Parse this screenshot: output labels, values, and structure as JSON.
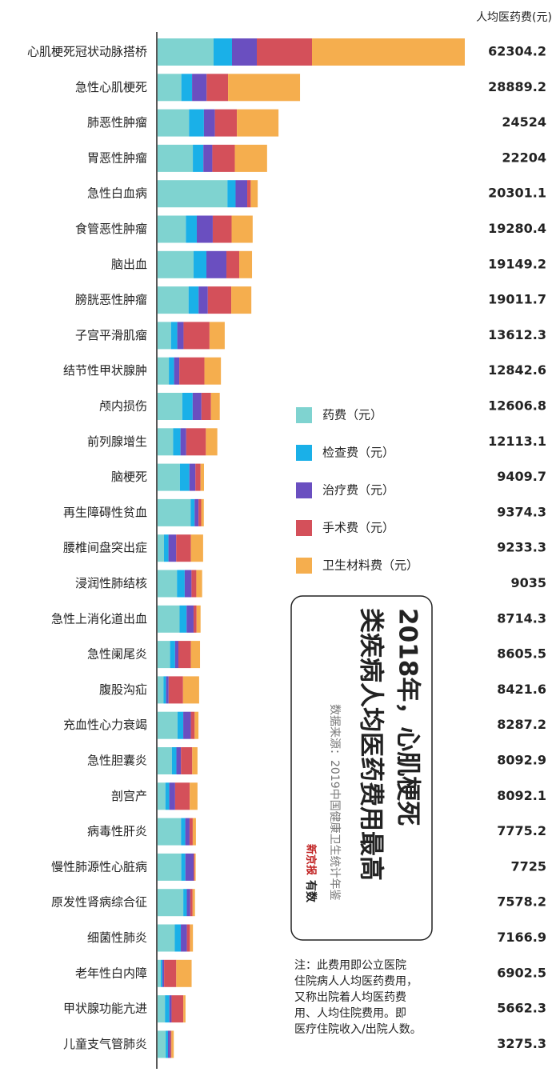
{
  "chart_data": {
    "type": "stacked-bar-horizontal",
    "value_header": "人均医药费(元)",
    "categories": [
      "心肌梗死冠状动脉搭桥",
      "急性心肌梗死",
      "肺恶性肿瘤",
      "胃恶性肿瘤",
      "急性白血病",
      "食管恶性肿瘤",
      "脑出血",
      "膀胱恶性肿瘤",
      "子宫平滑肌瘤",
      "结节性甲状腺肿",
      "颅内损伤",
      "前列腺增生",
      "脑梗死",
      "再生障碍性贫血",
      "腰椎间盘突出症",
      "浸润性肺结核",
      "急性上消化道出血",
      "急性阑尾炎",
      "腹股沟疝",
      "充血性心力衰竭",
      "急性胆囊炎",
      "剖宫产",
      "病毒性肝炎",
      "慢性肺源性心脏病",
      "原发性肾病综合征",
      "细菌性肺炎",
      "老年性白内障",
      "甲状腺功能亢进",
      "儿童支气管肺炎"
    ],
    "totals": [
      62304.2,
      28889.2,
      24524,
      22204,
      20301.1,
      19280.4,
      19149.2,
      19011.7,
      13612.3,
      12842.6,
      12606.8,
      12113.1,
      9409.7,
      9374.3,
      9233.3,
      9035,
      8714.3,
      8605.5,
      8421.6,
      8287.2,
      8092.9,
      8092.1,
      7775.2,
      7725,
      7578.2,
      7166.9,
      6902.5,
      5662.3,
      3275.3
    ],
    "series": [
      {
        "name": "药费（元）",
        "color": "#7fd3d0",
        "values": [
          11357,
          4815,
          6370,
          7148,
          14164,
          5740,
          7303,
          6281,
          2722,
          2287,
          5010,
          3153,
          4530,
          6696,
          1300,
          3928,
          4458,
          2531,
          1203,
          4047,
          2901,
          1579,
          4751,
          4802,
          5210,
          3481,
          657,
          1490,
          1638
        ]
      },
      {
        "name": "检查费（元）",
        "color": "#1ab0e8",
        "values": [
          3732,
          2174,
          3025,
          2129,
          1652,
          2208,
          2597,
          2037,
          1271,
          1056,
          2101,
          1493,
          1917,
          804,
          910,
          1571,
          1419,
          1012,
          516,
          1156,
          916,
          789,
          864,
          835,
          710,
          1229,
          329,
          894,
          468
        ]
      },
      {
        "name": "治疗费（元）",
        "color": "#6a4fc0",
        "values": [
          5030,
          2951,
          2229,
          1825,
          2361,
          3238,
          4057,
          1867,
          1271,
          1056,
          1778,
          1162,
          1220,
          804,
          1561,
          1375,
          1419,
          675,
          516,
          1542,
          916,
          1184,
          864,
          1670,
          710,
          1229,
          329,
          447,
          468
        ]
      },
      {
        "name": "手术费（元）",
        "color": "#d4505a",
        "values": [
          11195,
          4349,
          4459,
          4563,
          708,
          3827,
          2597,
          4753,
          5264,
          5102,
          1939,
          3982,
          1046,
          536,
          2991,
          982,
          608,
          2531,
          2922,
          771,
          2290,
          2960,
          648,
          209,
          474,
          614,
          2465,
          2384,
          234
        ]
      },
      {
        "name": "卫生材料费（元）",
        "color": "#f5ae4e",
        "values": [
          30990,
          14600,
          8441,
          6539,
          1416,
          4267,
          2597,
          4074,
          3085,
          3342,
          1778,
          2323,
          697,
          536,
          2471,
          1179,
          811,
          1856,
          3265,
          771,
          1069,
          1579,
          648,
          209,
          474,
          614,
          3122,
          447,
          468
        ]
      }
    ],
    "title_lines": [
      "2018年，心肌梗死",
      "类疾病人均医药费用最高"
    ],
    "source": "数据来源：2019中国健康卫生统计年鉴",
    "logo": [
      "新京报",
      "有数"
    ],
    "note_lines": [
      "注：此费用即公立医院",
      "住院病人人均医药费用，",
      "又称出院着人均医药费",
      "用、人均住院费用。即",
      "医疗住院收入/出院人数。"
    ]
  }
}
